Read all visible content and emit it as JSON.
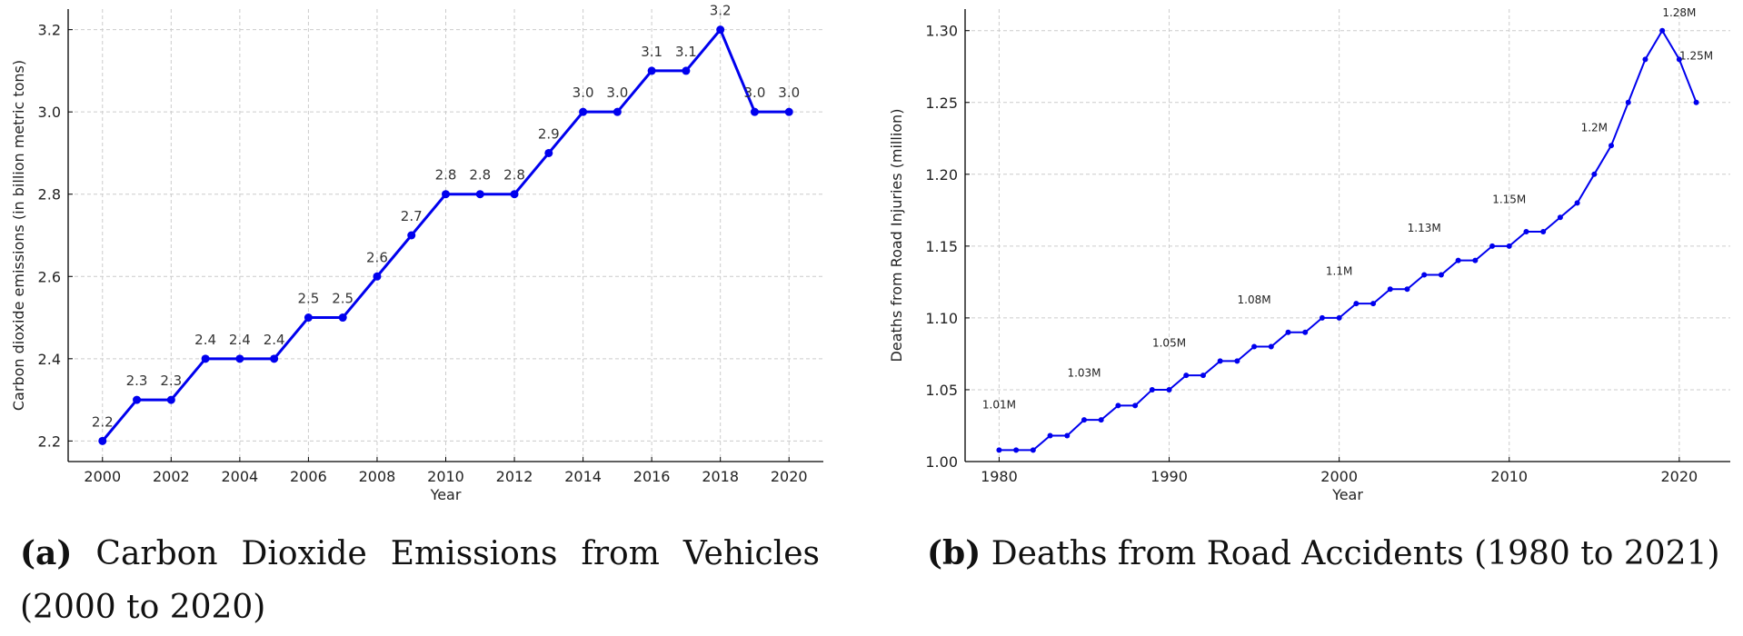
{
  "figure": {
    "caption_a_label": "(a)",
    "caption_a_text": "Carbon Dioxide Emissions from Vehicles",
    "caption_a_text2": "(2000 to 2020)",
    "caption_b_label": "(b)",
    "caption_b_text": "Deaths from Road Accidents (1980 to 2021)"
  },
  "chart_data": [
    {
      "type": "line",
      "xlabel": "Year",
      "ylabel": "Carbon dioxide emissions (in billion metric tons)",
      "x": [
        2000,
        2001,
        2002,
        2003,
        2004,
        2005,
        2006,
        2007,
        2008,
        2009,
        2010,
        2011,
        2012,
        2013,
        2014,
        2015,
        2016,
        2017,
        2018,
        2019,
        2020
      ],
      "values": [
        2.2,
        2.3,
        2.3,
        2.4,
        2.4,
        2.4,
        2.5,
        2.5,
        2.6,
        2.7,
        2.8,
        2.8,
        2.8,
        2.9,
        3.0,
        3.0,
        3.1,
        3.1,
        3.2,
        3.0,
        3.0
      ],
      "data_labels": [
        "2.2",
        "2.3",
        "2.3",
        "2.4",
        "2.4",
        "2.4",
        "2.5",
        "2.5",
        "2.6",
        "2.7",
        "2.8",
        "2.8",
        "2.8",
        "2.9",
        "3.0",
        "3.0",
        "3.1",
        "3.1",
        "3.2",
        "3.0",
        "3.0"
      ],
      "xlim": [
        1999.0,
        2021.0
      ],
      "ylim": [
        2.15,
        3.25
      ],
      "xticks": [
        2000,
        2002,
        2004,
        2006,
        2008,
        2010,
        2012,
        2014,
        2016,
        2018,
        2020
      ],
      "xtick_labels": [
        "2000",
        "2002",
        "2004",
        "2006",
        "2008",
        "2010",
        "2012",
        "2014",
        "2016",
        "2018",
        "2020"
      ],
      "yticks": [
        2.2,
        2.4,
        2.6,
        2.8,
        3.0,
        3.2
      ],
      "ytick_labels": [
        "2.2",
        "2.4",
        "2.6",
        "2.8",
        "3.0",
        "3.2"
      ],
      "grid": true,
      "color": "#0000ee"
    },
    {
      "type": "line",
      "xlabel": "Year",
      "ylabel": "Deaths from Road Injuries (million)",
      "x": [
        1980,
        1981,
        1982,
        1983,
        1984,
        1985,
        1986,
        1987,
        1988,
        1989,
        1990,
        1991,
        1992,
        1993,
        1994,
        1995,
        1996,
        1997,
        1998,
        1999,
        2000,
        2001,
        2002,
        2003,
        2004,
        2005,
        2006,
        2007,
        2008,
        2009,
        2010,
        2011,
        2012,
        2013,
        2014,
        2015,
        2016,
        2017,
        2018,
        2019,
        2020,
        2021
      ],
      "values": [
        1.008,
        1.008,
        1.008,
        1.018,
        1.018,
        1.029,
        1.029,
        1.039,
        1.039,
        1.05,
        1.05,
        1.06,
        1.06,
        1.07,
        1.07,
        1.08,
        1.08,
        1.09,
        1.09,
        1.1,
        1.1,
        1.11,
        1.11,
        1.12,
        1.12,
        1.13,
        1.13,
        1.14,
        1.14,
        1.15,
        1.15,
        1.16,
        1.16,
        1.17,
        1.18,
        1.2,
        1.22,
        1.25,
        1.28,
        1.3,
        1.28,
        1.25
      ],
      "annotations": [
        {
          "x": 1980,
          "y": 1.037,
          "text": "1.01M"
        },
        {
          "x": 1985,
          "y": 1.059,
          "text": "1.03M"
        },
        {
          "x": 1990,
          "y": 1.08,
          "text": "1.05M"
        },
        {
          "x": 1995,
          "y": 1.11,
          "text": "1.08M"
        },
        {
          "x": 2000,
          "y": 1.13,
          "text": "1.1M"
        },
        {
          "x": 2005,
          "y": 1.16,
          "text": "1.13M"
        },
        {
          "x": 2010,
          "y": 1.18,
          "text": "1.15M"
        },
        {
          "x": 2015,
          "y": 1.23,
          "text": "1.2M"
        },
        {
          "x": 2020,
          "y": 1.31,
          "text": "1.28M"
        },
        {
          "x": 2021,
          "y": 1.28,
          "text": "1.25M"
        }
      ],
      "xlim": [
        1978.0,
        2023.0
      ],
      "ylim": [
        1.0,
        1.315
      ],
      "xticks": [
        1980,
        1990,
        2000,
        2010,
        2020
      ],
      "xtick_labels": [
        "1980",
        "1990",
        "2000",
        "2010",
        "2020"
      ],
      "yticks": [
        1.0,
        1.05,
        1.1,
        1.15,
        1.2,
        1.25,
        1.3
      ],
      "ytick_labels": [
        "1.00",
        "1.05",
        "1.10",
        "1.15",
        "1.20",
        "1.25",
        "1.30"
      ],
      "grid": true,
      "color": "#0000ee"
    }
  ]
}
